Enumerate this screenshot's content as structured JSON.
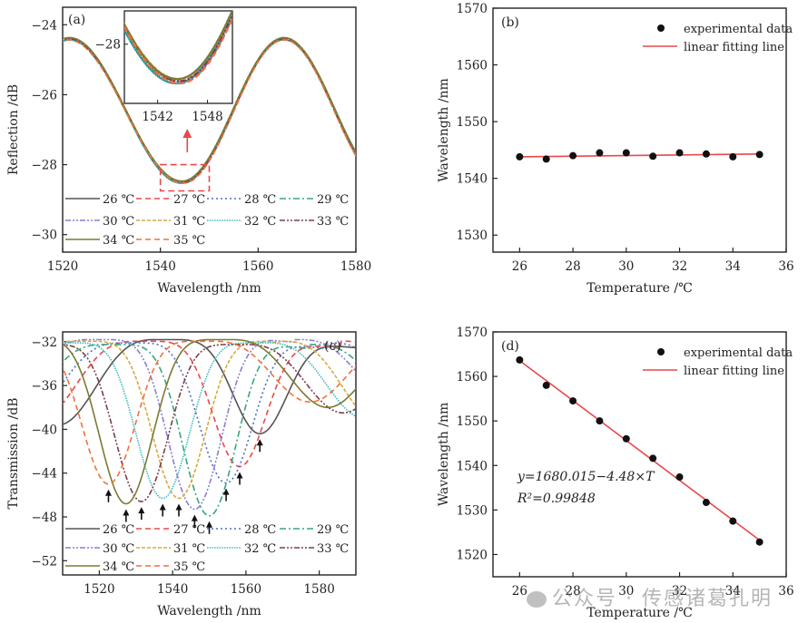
{
  "temperatures": [
    "26 ℃",
    "27 ℃",
    "28 ℃",
    "29 ℃",
    "30 ℃",
    "31 ℃",
    "32 ℃",
    "33 ℃",
    "34 ℃",
    "35 ℃"
  ],
  "series_styles": [
    {
      "name": "26 ℃",
      "color": "#555555",
      "dash": "solid"
    },
    {
      "name": "27 ℃",
      "color": "#e8484a",
      "dash": "dash"
    },
    {
      "name": "28 ℃",
      "color": "#4a6fc4",
      "dash": "dot"
    },
    {
      "name": "29 ℃",
      "color": "#3aa57a",
      "dash": "dashdot"
    },
    {
      "name": "30 ℃",
      "color": "#8b7fd1",
      "dash": "dashdotdot"
    },
    {
      "name": "31 ℃",
      "color": "#d9a840",
      "dash": "shortdash"
    },
    {
      "name": "32 ℃",
      "color": "#3bbcc4",
      "dash": "densedot"
    },
    {
      "name": "33 ℃",
      "color": "#7a3e4a",
      "dash": "dashdotdot"
    },
    {
      "name": "34 ℃",
      "color": "#7b7a33",
      "dash": "solid"
    },
    {
      "name": "35 ℃",
      "color": "#f0713a",
      "dash": "dash"
    }
  ],
  "chart_data": [
    {
      "id": "a",
      "type": "line",
      "panel_label": "(a)",
      "xlabel": "Wavelength /nm",
      "ylabel": "Reflection /dB",
      "xlim": [
        1520,
        1580
      ],
      "ylim": [
        -30.5,
        -23.5
      ],
      "xticks": [
        1520,
        1540,
        1560,
        1580
      ],
      "yticks": [
        -24,
        -26,
        -28,
        -30
      ],
      "grid": false,
      "legend": [
        "26 ℃",
        "27 ℃",
        "28 ℃",
        "29 ℃",
        "30 ℃",
        "31 ℃",
        "32 ℃",
        "33 ℃",
        "34 ℃",
        "35 ℃"
      ],
      "legend_position": "bottom-left",
      "curve_model": {
        "min_wavelength_nm": [
          1544.3,
          1544.5,
          1544.4,
          1544.6,
          1544.8,
          1544.5,
          1544.2,
          1544.6,
          1544.4,
          1544.7
        ],
        "min_dB": -28.5,
        "max_dB": -24.4,
        "peak_wavelengths_nm": [
          1521.5,
          1565.3
        ]
      },
      "highlight_box": {
        "x": [
          1540,
          1550
        ],
        "y": [
          -28.0,
          -28.75
        ]
      },
      "annotation": "arrow from highlight box to inset",
      "inset": {
        "xlim": [
          1538,
          1551
        ],
        "ylim": [
          -28.8,
          -27.55
        ],
        "xticks": [
          1542,
          1548
        ],
        "yticks": [
          -28
        ]
      }
    },
    {
      "id": "b",
      "type": "scatter",
      "panel_label": "(b)",
      "xlabel": "Temperature /℃",
      "ylabel": "Wavelength /nm",
      "xlim": [
        25,
        36
      ],
      "ylim": [
        1527,
        1570
      ],
      "xticks": [
        26,
        28,
        30,
        32,
        34,
        36
      ],
      "yticks": [
        1530,
        1540,
        1550,
        1560,
        1570
      ],
      "grid": false,
      "x": [
        26,
        27,
        28,
        29,
        30,
        31,
        32,
        33,
        34,
        35
      ],
      "y": [
        1543.8,
        1543.4,
        1544.0,
        1544.5,
        1544.5,
        1543.9,
        1544.5,
        1544.3,
        1543.8,
        1544.2
      ],
      "fit": {
        "x": [
          26,
          35
        ],
        "y": [
          1543.8,
          1544.3
        ]
      },
      "legend": [
        "experimental data",
        "linear fitting line"
      ],
      "legend_position": "top-right"
    },
    {
      "id": "c",
      "type": "line",
      "panel_label": "(c)",
      "xlabel": "Wavelength /nm",
      "ylabel": "Transmission /dB",
      "xlim": [
        1510,
        1590
      ],
      "ylim": [
        -53.3,
        -31.1
      ],
      "xticks": [
        1520,
        1540,
        1560,
        1580
      ],
      "yticks": [
        -32,
        -36,
        -40,
        -44,
        -48,
        -52
      ],
      "grid": false,
      "legend": [
        "26 ℃",
        "27 ℃",
        "28 ℃",
        "29 ℃",
        "30 ℃",
        "31 ℃",
        "32 ℃",
        "33 ℃",
        "34 ℃",
        "35 ℃"
      ],
      "legend_position": "bottom-left",
      "dip_wavelength_nm": [
        1563.8,
        1558.3,
        1554.6,
        1550.0,
        1546.0,
        1541.7,
        1537.3,
        1531.5,
        1527.3,
        1522.5
      ],
      "dip_depth_dB": [
        -40.4,
        -43.4,
        -44.9,
        -47.9,
        -47.3,
        -46.3,
        -46.3,
        -46.6,
        -46.8,
        -45.0
      ],
      "secondary_dip": {
        "wavelength_offset_nm": 55,
        "depth_dB": -39.5
      },
      "arrows": "one upward black arrow beneath each main dip"
    },
    {
      "id": "d",
      "type": "scatter",
      "panel_label": "(d)",
      "xlabel": "Temperature /℃",
      "ylabel": "Wavelength /nm",
      "xlim": [
        25,
        36
      ],
      "ylim": [
        1515,
        1570
      ],
      "xticks": [
        26,
        28,
        30,
        32,
        34,
        36
      ],
      "yticks": [
        1520,
        1530,
        1540,
        1550,
        1560,
        1570
      ],
      "grid": false,
      "x": [
        26,
        27,
        28,
        29,
        30,
        31,
        32,
        33,
        34,
        35
      ],
      "y": [
        1563.7,
        1558.0,
        1554.5,
        1550.0,
        1546.0,
        1541.6,
        1537.4,
        1531.7,
        1527.5,
        1522.8
      ],
      "fit": {
        "slope": -4.48,
        "intercept": 1680.015,
        "x": [
          26,
          35
        ]
      },
      "equation": "y=1680.015−4.48×T",
      "r_squared": "R²=0.99848",
      "legend": [
        "experimental data",
        "linear fitting line"
      ],
      "legend_position": "top-right"
    }
  ],
  "watermark": "公众号 · 传感诸葛孔明"
}
